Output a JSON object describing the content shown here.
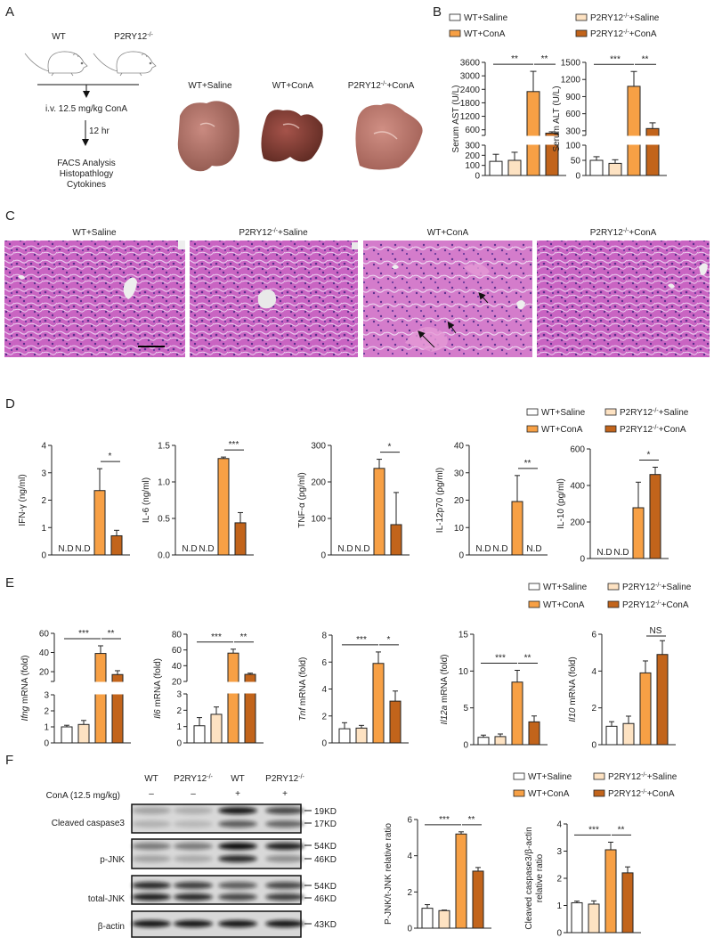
{
  "panel_labels": [
    "A",
    "B",
    "C",
    "D",
    "E",
    "F"
  ],
  "groups": [
    {
      "name": "WT+Saline",
      "color": "#ffffff"
    },
    {
      "name": "P2RY12-/-+Saline",
      "color": "#fde2c2"
    },
    {
      "name": "WT+ConA",
      "color": "#f7a045"
    },
    {
      "name": "P2RY12-/-+ConA",
      "color": "#c2641b"
    }
  ],
  "legend": {
    "col1": [
      "WT+Saline",
      "WT+ConA"
    ],
    "col2": [
      "P2RY12-/-+Saline",
      "P2RY12-/-+ConA"
    ]
  },
  "panel_a": {
    "mouse_labels": [
      "WT",
      "P2RY12-/-"
    ],
    "injection": "i.v. 12.5 mg/kg ConA",
    "duration": "12 hr",
    "readouts": [
      "FACS Analysis",
      "Histopathlogy",
      "Cytokines"
    ],
    "liver_labels": [
      "WT+Saline",
      "WT+ConA",
      "P2RY12-/-+ConA"
    ]
  },
  "panel_c": {
    "titles": [
      "WT+Saline",
      "P2RY12-/-+Saline",
      "WT+ConA",
      "P2RY12-/-+ConA"
    ]
  },
  "panel_f": {
    "lanes": [
      "WT",
      "P2RY12-/-",
      "WT",
      "P2RY12-/-"
    ],
    "treatment_label": "ConA (12.5 mg/kg)",
    "treatment": [
      "–",
      "–",
      "+",
      "+"
    ],
    "rows": [
      {
        "label": "Cleaved caspase3",
        "markers": [
          "19KD",
          "17KD"
        ]
      },
      {
        "label": "p-JNK",
        "markers": [
          "54KD",
          "46KD"
        ]
      },
      {
        "label": "total-JNK",
        "markers": [
          "54KD",
          "46KD"
        ]
      },
      {
        "label": "β-actin",
        "markers": [
          "43KD"
        ]
      }
    ]
  },
  "nd_label": "N.D",
  "chart_data": [
    {
      "id": "ast",
      "panel": "B",
      "type": "bar",
      "ylabel": "Serum AST (U/L)",
      "italic_prefix": "",
      "axis_break": {
        "lower": [
          0,
          300
        ],
        "upper": [
          350,
          3600
        ]
      },
      "yticks": [
        0,
        100,
        200,
        300,
        600,
        1200,
        1800,
        2400,
        3000,
        3600
      ],
      "tick_labels": [
        "0",
        "100",
        "200",
        "300",
        "600",
        "1200",
        "1800",
        "2400",
        "3000",
        "3600"
      ],
      "values": [
        140,
        150,
        2300,
        450
      ],
      "errors": [
        70,
        80,
        900,
        60
      ],
      "sig": [
        {
          "from": 0,
          "to": 2,
          "label": "**"
        },
        {
          "from": 2,
          "to": 3,
          "label": "**"
        }
      ]
    },
    {
      "id": "alt",
      "panel": "B",
      "type": "bar",
      "ylabel": "Serum ALT (U/L)",
      "italic_prefix": "",
      "axis_break": {
        "lower": [
          0,
          100
        ],
        "upper": [
          220,
          1500
        ]
      },
      "yticks": [
        0,
        50,
        100,
        300,
        600,
        900,
        1200,
        1500
      ],
      "tick_labels": [
        "0",
        "50",
        "100",
        "300",
        "600",
        "900",
        "1200",
        "1500"
      ],
      "values": [
        50,
        40,
        1080,
        340
      ],
      "errors": [
        12,
        12,
        260,
        100
      ],
      "sig": [
        {
          "from": 0,
          "to": 2,
          "label": "***"
        },
        {
          "from": 2,
          "to": 3,
          "label": "**"
        }
      ]
    },
    {
      "id": "ifng_protein",
      "panel": "D",
      "type": "bar",
      "ylabel": "IFN-γ (ng/ml)",
      "italic_prefix": "",
      "ylim": [
        0,
        4
      ],
      "yticks": [
        0,
        1,
        2,
        3,
        4
      ],
      "tick_labels": [
        "0",
        "1",
        "2",
        "3",
        "4"
      ],
      "values": [
        null,
        null,
        2.35,
        0.7
      ],
      "errors": [
        null,
        null,
        0.8,
        0.2
      ],
      "sig": [
        {
          "from": 2,
          "to": 3,
          "label": "*"
        }
      ]
    },
    {
      "id": "il6_protein",
      "panel": "D",
      "type": "bar",
      "ylabel": "IL-6 (ng/ml)",
      "italic_prefix": "",
      "ylim": [
        0,
        1.5
      ],
      "yticks": [
        0,
        0.5,
        1,
        1.5
      ],
      "tick_labels": [
        "0.0",
        "0.5",
        "1.0",
        "1.5"
      ],
      "values": [
        null,
        null,
        1.32,
        0.44
      ],
      "errors": [
        null,
        null,
        0.02,
        0.14
      ],
      "sig": [
        {
          "from": 2,
          "to": 3,
          "label": "***"
        }
      ]
    },
    {
      "id": "tnf_protein",
      "panel": "D",
      "type": "bar",
      "ylabel": "TNF-α (pg/ml)",
      "italic_prefix": "",
      "ylim": [
        0,
        300
      ],
      "yticks": [
        0,
        100,
        200,
        300
      ],
      "tick_labels": [
        "0",
        "100",
        "200",
        "300"
      ],
      "values": [
        null,
        null,
        237,
        83
      ],
      "errors": [
        null,
        null,
        25,
        88
      ],
      "sig": [
        {
          "from": 2,
          "to": 3,
          "label": "*"
        }
      ]
    },
    {
      "id": "il12_protein",
      "panel": "D",
      "type": "bar",
      "ylabel": "IL-12p70 (pg/ml)",
      "italic_prefix": "",
      "ylim": [
        0,
        40
      ],
      "yticks": [
        0,
        10,
        20,
        30,
        40
      ],
      "tick_labels": [
        "0",
        "10",
        "20",
        "30",
        "40"
      ],
      "values": [
        null,
        null,
        19.5,
        null
      ],
      "errors": [
        null,
        null,
        9.5,
        null
      ],
      "sig": [
        {
          "from": 2,
          "to": 3,
          "label": "**"
        }
      ]
    },
    {
      "id": "il10_protein",
      "panel": "D",
      "type": "bar",
      "ylabel": "IL-10 (pg/ml)",
      "italic_prefix": "",
      "ylim": [
        0,
        600
      ],
      "yticks": [
        0,
        200,
        400,
        600
      ],
      "tick_labels": [
        "0",
        "200",
        "400",
        "600"
      ],
      "values": [
        null,
        null,
        278,
        460
      ],
      "errors": [
        null,
        null,
        140,
        40
      ],
      "sig": [
        {
          "from": 2,
          "to": 3,
          "label": "*"
        }
      ]
    },
    {
      "id": "ifng_mrna",
      "panel": "E",
      "type": "bar",
      "ylabel": "Ifng mRNA (fold)",
      "italic_prefix": "Ifng",
      "axis_break": {
        "lower": [
          0,
          3
        ],
        "upper": [
          9.8,
          60
        ]
      },
      "yticks": [
        0,
        1,
        2,
        3,
        20,
        40,
        60
      ],
      "tick_labels": [
        "0",
        "1",
        "2",
        "3",
        "20",
        "40",
        "60"
      ],
      "values": [
        1.0,
        1.15,
        39,
        17
      ],
      "errors": [
        0.1,
        0.25,
        8,
        4
      ],
      "sig": [
        {
          "from": 0,
          "to": 2,
          "label": "***"
        },
        {
          "from": 2,
          "to": 3,
          "label": "**"
        }
      ]
    },
    {
      "id": "il6_mrna",
      "panel": "E",
      "type": "bar",
      "ylabel": "Il6 mRNA (fold)",
      "italic_prefix": "Il6",
      "axis_break": {
        "lower": [
          0,
          3
        ],
        "upper": [
          20,
          80
        ]
      },
      "yticks": [
        0,
        1,
        2,
        3,
        20,
        40,
        60,
        80
      ],
      "tick_labels": [
        "0",
        "1",
        "2",
        "3",
        "20",
        "40",
        "60",
        "80"
      ],
      "values": [
        1.05,
        1.75,
        56,
        29
      ],
      "errors": [
        0.5,
        0.45,
        5,
        1.5
      ],
      "sig": [
        {
          "from": 0,
          "to": 2,
          "label": "***"
        },
        {
          "from": 2,
          "to": 3,
          "label": "**"
        }
      ]
    },
    {
      "id": "tnf_mrna",
      "panel": "E",
      "type": "bar",
      "ylabel": "Tnf mRNA (fold)",
      "italic_prefix": "Tnf",
      "ylim": [
        0,
        8
      ],
      "yticks": [
        0,
        2,
        4,
        6,
        8
      ],
      "tick_labels": [
        "0",
        "2",
        "4",
        "6",
        "8"
      ],
      "values": [
        1.05,
        1.1,
        5.9,
        3.1
      ],
      "errors": [
        0.45,
        0.2,
        0.85,
        0.75
      ],
      "sig": [
        {
          "from": 0,
          "to": 2,
          "label": "***"
        },
        {
          "from": 2,
          "to": 3,
          "label": "*"
        }
      ]
    },
    {
      "id": "il12a_mrna",
      "panel": "E",
      "type": "bar",
      "ylabel": "Il12a mRNA (fold)",
      "italic_prefix": "Il12a",
      "ylim": [
        0,
        15
      ],
      "yticks": [
        0,
        5,
        10,
        15
      ],
      "tick_labels": [
        "0",
        "5",
        "10",
        "15"
      ],
      "values": [
        1.0,
        1.1,
        8.5,
        3.1
      ],
      "errors": [
        0.3,
        0.35,
        1.6,
        0.8
      ],
      "sig": [
        {
          "from": 0,
          "to": 2,
          "label": "***"
        },
        {
          "from": 2,
          "to": 3,
          "label": "**"
        }
      ]
    },
    {
      "id": "il10_mrna",
      "panel": "E",
      "type": "bar",
      "ylabel": "Il10 mRNA (fold)",
      "italic_prefix": "Il10",
      "ylim": [
        0,
        6
      ],
      "yticks": [
        0,
        2,
        4,
        6
      ],
      "tick_labels": [
        "0",
        "2",
        "4",
        "6"
      ],
      "values": [
        1.0,
        1.15,
        3.9,
        4.9
      ],
      "errors": [
        0.25,
        0.4,
        0.65,
        0.75
      ],
      "sig": [
        {
          "from": 2,
          "to": 3,
          "label": "NS"
        }
      ]
    },
    {
      "id": "pjnk_ratio",
      "panel": "F",
      "type": "bar",
      "ylabel": "P-JNK/t-JNK relative ratio",
      "italic_prefix": "",
      "ylim": [
        0,
        6
      ],
      "yticks": [
        0,
        2,
        4,
        6
      ],
      "tick_labels": [
        "0",
        "2",
        "4",
        "6"
      ],
      "values": [
        1.1,
        0.97,
        5.2,
        3.15
      ],
      "errors": [
        0.2,
        0.03,
        0.12,
        0.2
      ],
      "sig": [
        {
          "from": 0,
          "to": 2,
          "label": "***"
        },
        {
          "from": 2,
          "to": 3,
          "label": "**"
        }
      ]
    },
    {
      "id": "casp3_ratio",
      "panel": "F",
      "type": "bar",
      "ylabel": "Cleaved caspase3/β-actin",
      "ylabel2": "relative ratio",
      "italic_prefix": "",
      "ylim": [
        0,
        4
      ],
      "yticks": [
        0,
        1,
        2,
        3,
        4
      ],
      "tick_labels": [
        "0",
        "1",
        "2",
        "3",
        "4"
      ],
      "values": [
        1.1,
        1.05,
        3.05,
        2.2
      ],
      "errors": [
        0.06,
        0.12,
        0.28,
        0.22
      ],
      "sig": [
        {
          "from": 0,
          "to": 2,
          "label": "***"
        },
        {
          "from": 2,
          "to": 3,
          "label": "**"
        }
      ]
    }
  ]
}
